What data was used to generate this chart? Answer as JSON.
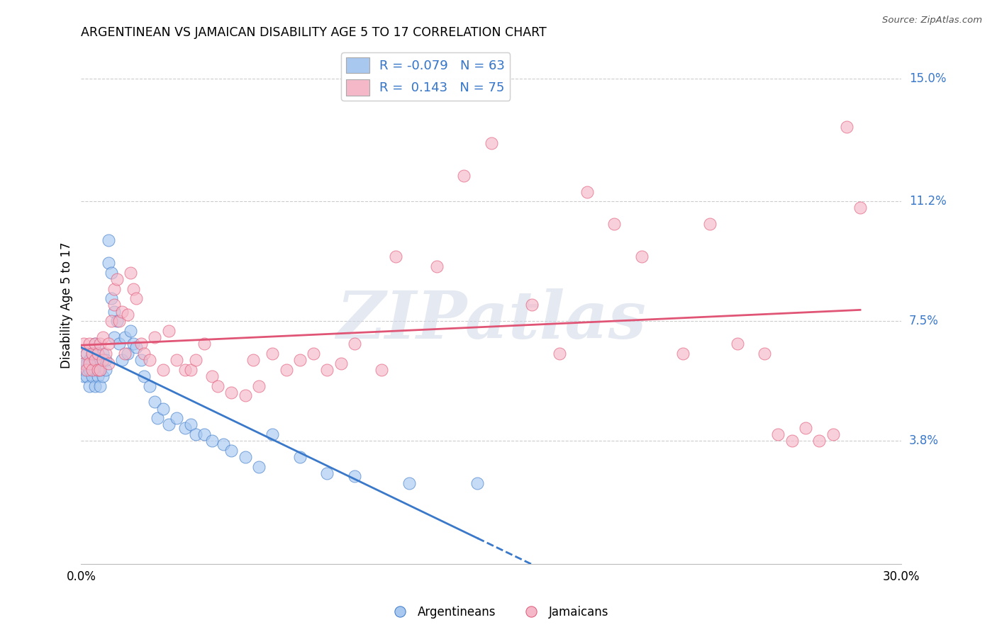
{
  "title": "ARGENTINEAN VS JAMAICAN DISABILITY AGE 5 TO 17 CORRELATION CHART",
  "source": "Source: ZipAtlas.com",
  "ylabel": "Disability Age 5 to 17",
  "xlim": [
    0.0,
    0.3
  ],
  "ylim": [
    0.0,
    0.16
  ],
  "xticks": [
    0.0,
    0.05,
    0.1,
    0.15,
    0.2,
    0.25,
    0.3
  ],
  "xticklabels": [
    "0.0%",
    "",
    "",
    "",
    "",
    "",
    "30.0%"
  ],
  "ytick_positions": [
    0.038,
    0.075,
    0.112,
    0.15
  ],
  "ytick_labels": [
    "3.8%",
    "7.5%",
    "11.2%",
    "15.0%"
  ],
  "legend_R_blue": "-0.079",
  "legend_N_blue": "63",
  "legend_R_pink": "0.143",
  "legend_N_pink": "75",
  "blue_color": "#a8c8f0",
  "pink_color": "#f5b8c8",
  "trendline_blue": "#3a78c9",
  "trendline_pink": "#e05575",
  "watermark_text": "ZIPatlas",
  "blue_points_x": [
    0.001,
    0.001,
    0.001,
    0.002,
    0.002,
    0.002,
    0.003,
    0.003,
    0.003,
    0.004,
    0.004,
    0.004,
    0.005,
    0.005,
    0.005,
    0.005,
    0.006,
    0.006,
    0.006,
    0.007,
    0.007,
    0.007,
    0.008,
    0.008,
    0.009,
    0.009,
    0.01,
    0.01,
    0.011,
    0.011,
    0.012,
    0.012,
    0.013,
    0.014,
    0.015,
    0.016,
    0.017,
    0.018,
    0.019,
    0.02,
    0.022,
    0.023,
    0.025,
    0.027,
    0.028,
    0.03,
    0.032,
    0.035,
    0.038,
    0.04,
    0.042,
    0.045,
    0.048,
    0.052,
    0.055,
    0.06,
    0.065,
    0.07,
    0.08,
    0.09,
    0.1,
    0.12,
    0.145
  ],
  "blue_points_y": [
    0.058,
    0.06,
    0.062,
    0.058,
    0.062,
    0.065,
    0.055,
    0.06,
    0.063,
    0.058,
    0.062,
    0.065,
    0.055,
    0.06,
    0.062,
    0.068,
    0.058,
    0.062,
    0.065,
    0.055,
    0.06,
    0.063,
    0.058,
    0.065,
    0.06,
    0.063,
    0.093,
    0.1,
    0.082,
    0.09,
    0.07,
    0.078,
    0.075,
    0.068,
    0.063,
    0.07,
    0.065,
    0.072,
    0.068,
    0.067,
    0.063,
    0.058,
    0.055,
    0.05,
    0.045,
    0.048,
    0.043,
    0.045,
    0.042,
    0.043,
    0.04,
    0.04,
    0.038,
    0.037,
    0.035,
    0.033,
    0.03,
    0.04,
    0.033,
    0.028,
    0.027,
    0.025,
    0.025
  ],
  "pink_points_x": [
    0.001,
    0.001,
    0.002,
    0.002,
    0.003,
    0.003,
    0.004,
    0.004,
    0.005,
    0.005,
    0.006,
    0.006,
    0.007,
    0.007,
    0.008,
    0.008,
    0.009,
    0.01,
    0.01,
    0.011,
    0.012,
    0.012,
    0.013,
    0.014,
    0.015,
    0.016,
    0.017,
    0.018,
    0.019,
    0.02,
    0.022,
    0.023,
    0.025,
    0.027,
    0.03,
    0.032,
    0.035,
    0.038,
    0.04,
    0.042,
    0.045,
    0.048,
    0.05,
    0.055,
    0.06,
    0.063,
    0.065,
    0.07,
    0.075,
    0.08,
    0.085,
    0.09,
    0.095,
    0.1,
    0.11,
    0.115,
    0.13,
    0.14,
    0.15,
    0.165,
    0.175,
    0.185,
    0.195,
    0.205,
    0.22,
    0.23,
    0.24,
    0.25,
    0.255,
    0.26,
    0.265,
    0.27,
    0.275,
    0.28,
    0.285
  ],
  "pink_points_y": [
    0.062,
    0.068,
    0.06,
    0.065,
    0.062,
    0.068,
    0.06,
    0.065,
    0.063,
    0.068,
    0.06,
    0.065,
    0.06,
    0.068,
    0.063,
    0.07,
    0.065,
    0.062,
    0.068,
    0.075,
    0.08,
    0.085,
    0.088,
    0.075,
    0.078,
    0.065,
    0.077,
    0.09,
    0.085,
    0.082,
    0.068,
    0.065,
    0.063,
    0.07,
    0.06,
    0.072,
    0.063,
    0.06,
    0.06,
    0.063,
    0.068,
    0.058,
    0.055,
    0.053,
    0.052,
    0.063,
    0.055,
    0.065,
    0.06,
    0.063,
    0.065,
    0.06,
    0.062,
    0.068,
    0.06,
    0.095,
    0.092,
    0.12,
    0.13,
    0.08,
    0.065,
    0.115,
    0.105,
    0.095,
    0.065,
    0.105,
    0.068,
    0.065,
    0.04,
    0.038,
    0.042,
    0.038,
    0.04,
    0.135,
    0.11
  ]
}
